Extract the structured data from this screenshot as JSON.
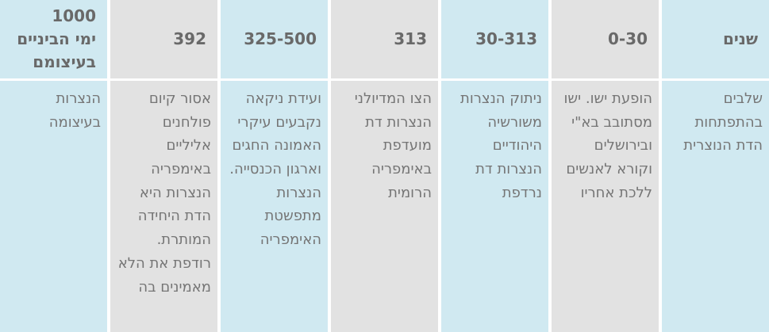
{
  "table": {
    "title_semantic": "stages-in-development-of-christianity",
    "direction": "rtl",
    "colors": {
      "column_blue": "#d0e9f1",
      "column_gray": "#e2e2e2",
      "gutter_white": "#ffffff",
      "header_text": "#696969",
      "body_text": "#757575"
    },
    "columns": [
      {
        "header": "שנים",
        "body": "שלבים בהתפתחות הדת הנוצרית",
        "tone": "blue"
      },
      {
        "header": "0-30",
        "body": "הופעת ישו. ישו מסתובב בא\"י ובירושלים וקורא לאנשים ללכת אחריו",
        "tone": "gray"
      },
      {
        "header": "30-313",
        "body": "ניתוק הנצרות משורשיה היהודיים הנצרות דת נרדפת",
        "tone": "blue"
      },
      {
        "header": "313",
        "body": "הצו המדיולני הנצרות דת מועדפת באימפריה הרומית",
        "tone": "gray"
      },
      {
        "header": "325-500",
        "body": "ועידת ניקאה נקבעים עיקרי האמונה החגים וארגון הכנסייה. הנצרות מתפשטת האימפריה",
        "tone": "blue"
      },
      {
        "header": "392",
        "body": "אסור קיום פולחנים אליליים באימפריה הנצרות היא הדת היחידה המותרת. רודפת את הלא מאמינים בה",
        "tone": "gray"
      },
      {
        "header": "1000\nימי הביניים\nבעיצומם",
        "body": "הנצרות בעיצומה",
        "tone": "blue"
      }
    ]
  }
}
